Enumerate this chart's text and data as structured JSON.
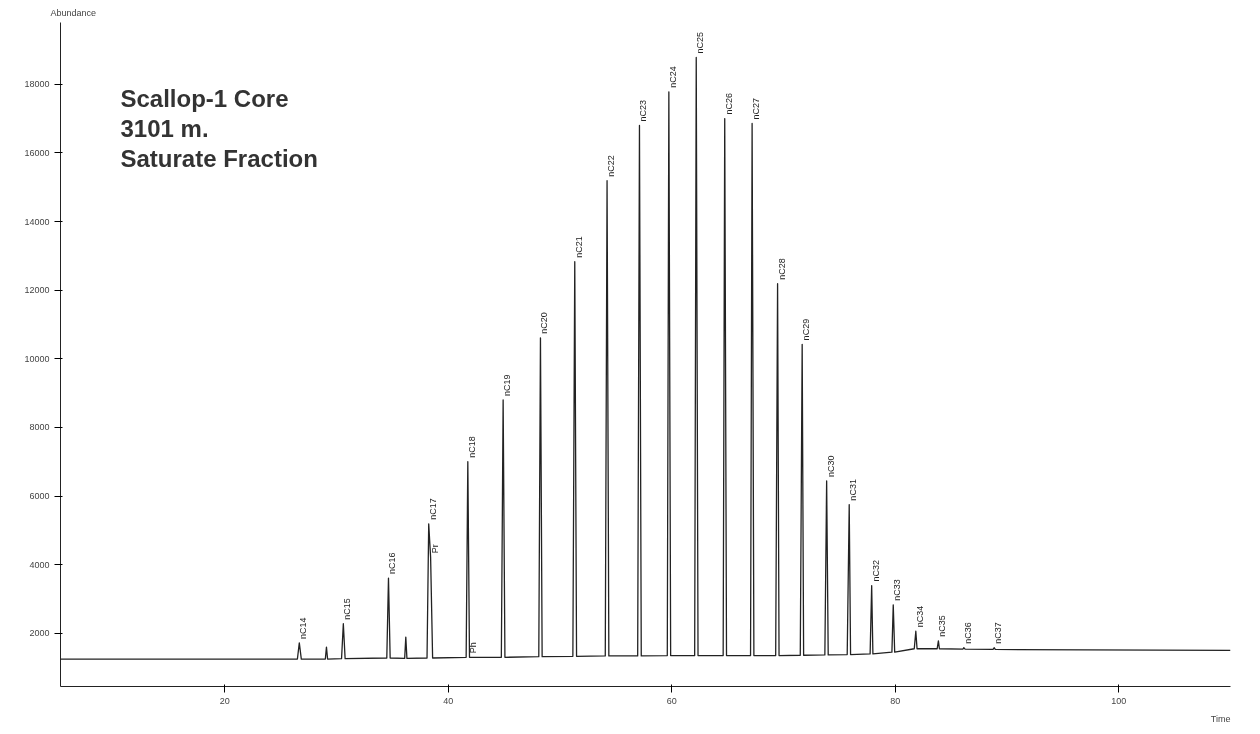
{
  "chart_data": {
    "type": "line",
    "title": "Scallop-1 Core\n3101 m.\nSaturate Fraction",
    "ylabel": "Abundance",
    "xlabel": "Time",
    "x": [
      5.3,
      26.5,
      26.67,
      26.85,
      29.0,
      29.1,
      29.2,
      30.45,
      30.61,
      30.77,
      34.5,
      34.65,
      34.8,
      36.1,
      36.2,
      36.3,
      38.1,
      38.25,
      38.42,
      38.6,
      41.6,
      41.75,
      41.9,
      44.75,
      44.91,
      45.07,
      48.1,
      48.25,
      48.4,
      51.15,
      51.32,
      51.48,
      54.05,
      54.21,
      54.37,
      56.95,
      57.11,
      57.27,
      59.6,
      59.74,
      59.9,
      62.05,
      62.19,
      62.35,
      64.6,
      64.74,
      64.9,
      67.05,
      67.19,
      67.35,
      69.3,
      69.47,
      69.6,
      71.5,
      71.67,
      71.8,
      73.7,
      73.86,
      74.0,
      75.7,
      75.88,
      76.0,
      77.75,
      77.89,
      78.0,
      79.7,
      79.82,
      79.95,
      81.7,
      81.84,
      81.95,
      83.75,
      83.86,
      83.95,
      86.05,
      86.14,
      86.25,
      88.75,
      88.86,
      88.95,
      110
    ],
    "series": [
      {
        "color": "#222222",
        "values": [
          1250,
          1250,
          1720,
          1250,
          1250,
          1600,
          1250,
          1260,
          2280,
          1260,
          1280,
          3610,
          1280,
          1270,
          1890,
          1270,
          1280,
          5190,
          4220,
          1280,
          1300,
          7000,
          1300,
          1300,
          8800,
          1300,
          1320,
          10610,
          1320,
          1330,
          12830,
          1330,
          1340,
          15190,
          1340,
          1340,
          16800,
          1340,
          1350,
          17780,
          1350,
          1350,
          18780,
          1350,
          1350,
          17000,
          1350,
          1350,
          16860,
          1350,
          1350,
          12190,
          1350,
          1360,
          10420,
          1360,
          1370,
          6440,
          1370,
          1380,
          5750,
          1380,
          1400,
          3390,
          1400,
          1450,
          2830,
          1450,
          1550,
          2060,
          1550,
          1550,
          1780,
          1550,
          1540,
          1580,
          1540,
          1530,
          1580,
          1530,
          1500
        ]
      }
    ],
    "xlim": [
      5.3,
      110
    ],
    "ylim": [
      450,
      19800
    ],
    "xticks": [
      20,
      40,
      60,
      80,
      100
    ],
    "yticks": [
      2000,
      4000,
      6000,
      8000,
      10000,
      12000,
      14000,
      16000,
      18000
    ],
    "grid": false,
    "marker": "none",
    "line_style": "solid",
    "annotations": [
      {
        "text": "nC14",
        "x": 26.67,
        "y": 1720
      },
      {
        "text": "nC15",
        "x": 30.61,
        "y": 2280
      },
      {
        "text": "nC16",
        "x": 34.65,
        "y": 3610
      },
      {
        "text": "nC17",
        "x": 38.25,
        "y": 5190
      },
      {
        "text": "Pr",
        "x": 38.42,
        "y": 4220
      },
      {
        "text": "nC18",
        "x": 41.75,
        "y": 7000
      },
      {
        "text": "Ph",
        "x": 41.9,
        "y": 1300
      },
      {
        "text": "nC19",
        "x": 44.91,
        "y": 8800
      },
      {
        "text": "nC20",
        "x": 48.25,
        "y": 10610
      },
      {
        "text": "nC21",
        "x": 51.32,
        "y": 12830
      },
      {
        "text": "nC22",
        "x": 54.21,
        "y": 15190
      },
      {
        "text": "nC23",
        "x": 57.11,
        "y": 16800
      },
      {
        "text": "nC24",
        "x": 59.74,
        "y": 17780
      },
      {
        "text": "nC25",
        "x": 62.19,
        "y": 18780
      },
      {
        "text": "nC26",
        "x": 64.74,
        "y": 17000
      },
      {
        "text": "nC27",
        "x": 67.19,
        "y": 16860
      },
      {
        "text": "nC28",
        "x": 69.47,
        "y": 12190
      },
      {
        "text": "nC29",
        "x": 71.67,
        "y": 10420
      },
      {
        "text": "nC30",
        "x": 73.86,
        "y": 6440
      },
      {
        "text": "nC31",
        "x": 75.88,
        "y": 5750
      },
      {
        "text": "nC32",
        "x": 77.89,
        "y": 3390
      },
      {
        "text": "nC33",
        "x": 79.82,
        "y": 2830
      },
      {
        "text": "nC34",
        "x": 81.84,
        "y": 2060
      },
      {
        "text": "nC35",
        "x": 83.86,
        "y": 1780
      },
      {
        "text": "nC36",
        "x": 86.14,
        "y": 1580
      },
      {
        "text": "nC37",
        "x": 88.86,
        "y": 1580
      }
    ]
  }
}
